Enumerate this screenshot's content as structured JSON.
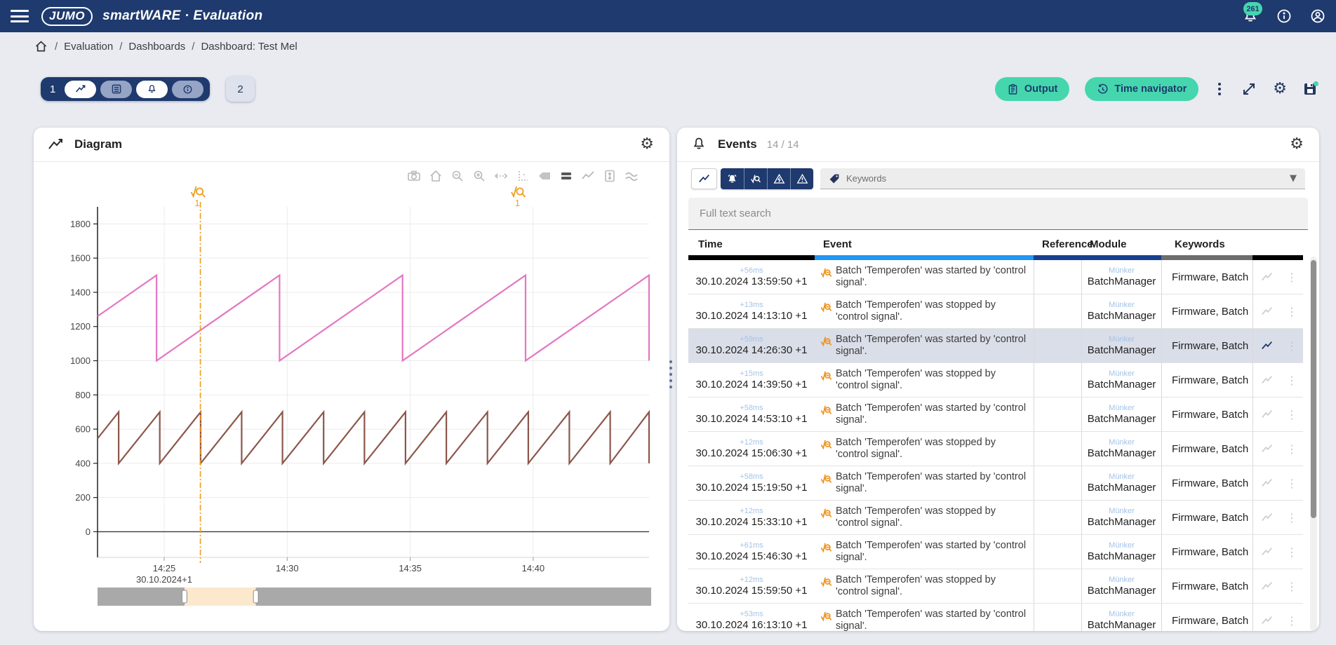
{
  "navbar": {
    "logo_text": "JUMO",
    "title": "smartWARE · Evaluation",
    "notification_count": "261",
    "icons": [
      "menu-icon",
      "bell-icon",
      "info-icon",
      "account-icon"
    ]
  },
  "breadcrumb": {
    "separator": "/",
    "items": [
      "Evaluation",
      "Dashboards",
      "Dashboard: Test Mel"
    ]
  },
  "toolbar": {
    "tab_group_label": "1",
    "tab_group_icons": [
      "line-chart-icon",
      "list-icon",
      "bell-icon",
      "info-icon"
    ],
    "tab2_label": "2",
    "output_label": "Output",
    "time_navigator_label": "Time navigator",
    "right_icons": [
      "kebab-menu-icon",
      "expand-icon",
      "gear-icon",
      "save-widget-icon"
    ],
    "accent_color": "#45d6ae"
  },
  "diagram": {
    "title": "Diagram",
    "gear_glyph": "⚙",
    "modebar_icons": [
      "camera-icon",
      "home-icon",
      "zoom-out-icon",
      "zoom-in-icon",
      "autoscale-icon",
      "reset-axes-icon",
      "tag-off-icon",
      "tag-on-icon",
      "line-mode-icon",
      "fit-vertical-icon",
      "stacked-mode-icon"
    ]
  },
  "chart_data": {
    "type": "line",
    "title": "",
    "x_axis": {
      "unit": "minutes_from_left_edge",
      "domain": [
        0,
        22.42
      ],
      "ticks": [
        {
          "t": 2.71,
          "label": "14:25"
        },
        {
          "t": 7.71,
          "label": "14:30"
        },
        {
          "t": 12.71,
          "label": "14:35"
        },
        {
          "t": 17.71,
          "label": "14:40"
        }
      ],
      "date_label": "30.10.2024+1"
    },
    "y_axis": {
      "domain": [
        -150,
        1900
      ],
      "ticks": [
        0,
        200,
        400,
        600,
        800,
        1000,
        1200,
        1400,
        1600,
        1800
      ]
    },
    "series": [
      {
        "name": "sawtooth-high",
        "color": "#e377c2",
        "points": [
          [
            0,
            1260
          ],
          [
            2.4,
            1500
          ],
          [
            2.4,
            1000
          ],
          [
            7.4,
            1500
          ],
          [
            7.4,
            1000
          ],
          [
            12.4,
            1500
          ],
          [
            12.4,
            1000
          ],
          [
            17.4,
            1500
          ],
          [
            17.4,
            1000
          ],
          [
            22.42,
            1500
          ],
          [
            22.42,
            1000
          ]
        ]
      },
      {
        "name": "sawtooth-low",
        "color": "#8c564b",
        "points": [
          [
            0,
            545
          ],
          [
            0.86,
            700
          ],
          [
            0.86,
            400
          ],
          [
            2.53,
            700
          ],
          [
            2.53,
            400
          ],
          [
            4.19,
            700
          ],
          [
            4.19,
            400
          ],
          [
            5.86,
            700
          ],
          [
            5.86,
            400
          ],
          [
            7.52,
            700
          ],
          [
            7.52,
            400
          ],
          [
            9.19,
            700
          ],
          [
            9.19,
            400
          ],
          [
            10.85,
            700
          ],
          [
            10.85,
            400
          ],
          [
            12.52,
            700
          ],
          [
            12.52,
            400
          ],
          [
            14.18,
            700
          ],
          [
            14.18,
            400
          ],
          [
            15.85,
            700
          ],
          [
            15.85,
            400
          ],
          [
            17.51,
            700
          ],
          [
            17.51,
            400
          ],
          [
            19.18,
            700
          ],
          [
            19.18,
            400
          ],
          [
            20.84,
            700
          ],
          [
            20.84,
            400
          ],
          [
            22.42,
            700
          ],
          [
            22.42,
            400
          ]
        ]
      }
    ],
    "annotations": [
      {
        "t": 4.18,
        "label": "1",
        "line": true,
        "color": "#ef9b1d"
      },
      {
        "t": 17.2,
        "label": "1",
        "line": false,
        "color": "#ef9b1d"
      }
    ],
    "rangeslider": {
      "window_start_frac": 0.157,
      "window_end_frac": 0.286,
      "selection_color": "#fce8cd"
    },
    "grid": true,
    "legend": "none"
  },
  "events": {
    "title": "Events",
    "count": "14 / 14",
    "gear_glyph": "⚙",
    "filter_icons": [
      "line-chart-icon",
      "alarm-bell-icon",
      "batch-search-icon",
      "fault-lightning-icon",
      "warning-icon"
    ],
    "keywords_label": "Keywords",
    "search_placeholder": "Full text search",
    "columns": [
      "Time",
      "Event",
      "Reference",
      "Module",
      "Keywords"
    ],
    "header_bar_colors": [
      "#000000",
      "#2196f3",
      "#17418e",
      "#6d6d6d",
      "#000000"
    ],
    "rows": [
      {
        "offset": "+56ms",
        "time": "30.10.2024 13:59:50 +1",
        "event": "Batch 'Temperofen' was started by 'control signal'.",
        "module_org": "Münker",
        "module": "BatchManager",
        "keywords": "Firmware, Batch",
        "selected": false
      },
      {
        "offset": "+13ms",
        "time": "30.10.2024 14:13:10 +1",
        "event": "Batch 'Temperofen' was stopped by 'control signal'.",
        "module_org": "Münker",
        "module": "BatchManager",
        "keywords": "Firmware, Batch",
        "selected": false
      },
      {
        "offset": "+59ms",
        "time": "30.10.2024 14:26:30 +1",
        "event": "Batch 'Temperofen' was started by 'control signal'.",
        "module_org": "Münker",
        "module": "BatchManager",
        "keywords": "Firmware, Batch",
        "selected": true
      },
      {
        "offset": "+15ms",
        "time": "30.10.2024 14:39:50 +1",
        "event": "Batch 'Temperofen' was stopped by 'control signal'.",
        "module_org": "Münker",
        "module": "BatchManager",
        "keywords": "Firmware, Batch",
        "selected": false
      },
      {
        "offset": "+58ms",
        "time": "30.10.2024 14:53:10 +1",
        "event": "Batch 'Temperofen' was started by 'control signal'.",
        "module_org": "Münker",
        "module": "BatchManager",
        "keywords": "Firmware, Batch",
        "selected": false
      },
      {
        "offset": "+12ms",
        "time": "30.10.2024 15:06:30 +1",
        "event": "Batch 'Temperofen' was stopped by 'control signal'.",
        "module_org": "Münker",
        "module": "BatchManager",
        "keywords": "Firmware, Batch",
        "selected": false
      },
      {
        "offset": "+58ms",
        "time": "30.10.2024 15:19:50 +1",
        "event": "Batch 'Temperofen' was started by 'control signal'.",
        "module_org": "Münker",
        "module": "BatchManager",
        "keywords": "Firmware, Batch",
        "selected": false
      },
      {
        "offset": "+12ms",
        "time": "30.10.2024 15:33:10 +1",
        "event": "Batch 'Temperofen' was stopped by 'control signal'.",
        "module_org": "Münker",
        "module": "BatchManager",
        "keywords": "Firmware, Batch",
        "selected": false
      },
      {
        "offset": "+61ms",
        "time": "30.10.2024 15:46:30 +1",
        "event": "Batch 'Temperofen' was started by 'control signal'.",
        "module_org": "Münker",
        "module": "BatchManager",
        "keywords": "Firmware, Batch",
        "selected": false
      },
      {
        "offset": "+12ms",
        "time": "30.10.2024 15:59:50 +1",
        "event": "Batch 'Temperofen' was stopped by 'control signal'.",
        "module_org": "Münker",
        "module": "BatchManager",
        "keywords": "Firmware, Batch",
        "selected": false
      },
      {
        "offset": "+53ms",
        "time": "30.10.2024 16:13:10 +1",
        "event": "Batch 'Temperofen' was started by 'control signal'.",
        "module_org": "Münker",
        "module": "BatchManager",
        "keywords": "Firmware, Batch",
        "selected": false
      }
    ]
  },
  "colors": {
    "navbar": "#1e3a6e",
    "accent_teal": "#45d6ae",
    "page_background": "#e9ebf1",
    "selected_row": "#dadee8",
    "annotation_orange": "#ef9b1d",
    "series_pink": "#e377c2",
    "series_brown": "#8c564b"
  }
}
